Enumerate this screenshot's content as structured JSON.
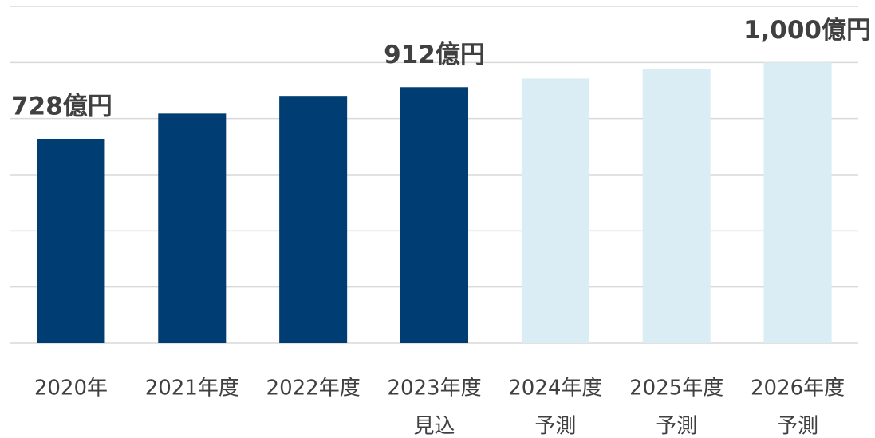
{
  "chart_data": {
    "type": "bar",
    "categories": [
      [
        "2020年"
      ],
      [
        "2021年度"
      ],
      [
        "2022年度"
      ],
      [
        "2023年度",
        "見込"
      ],
      [
        "2024年度",
        "予測"
      ],
      [
        "2025年度",
        "予測"
      ],
      [
        "2026年度",
        "予測"
      ]
    ],
    "values": [
      728,
      818,
      881,
      912,
      943,
      977,
      1000
    ],
    "value_labels": [
      "728億円",
      null,
      null,
      "912億円",
      null,
      null,
      "1,000億円"
    ],
    "colors": [
      "#003d73",
      "#003d73",
      "#003d73",
      "#003d73",
      "#daedf4",
      "#daedf4",
      "#daedf4"
    ],
    "ylim": [
      0,
      1200
    ],
    "yticks": [
      0,
      200,
      400,
      600,
      800,
      1000,
      1200
    ],
    "grid": true
  }
}
